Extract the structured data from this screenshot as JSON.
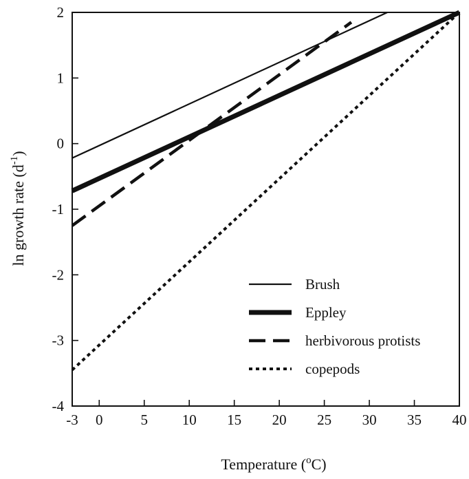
{
  "chart_data": {
    "type": "line",
    "title": "",
    "xlabel": "Temperature (",
    "xlabel_sup": "o",
    "xlabel_tail": "C)",
    "ylabel": "ln growth rate (d",
    "ylabel_sup": "-1",
    "ylabel_tail": ")",
    "xlim": [
      -3,
      40
    ],
    "ylim": [
      -4,
      2
    ],
    "xticks": [
      -3,
      0,
      5,
      10,
      15,
      20,
      25,
      30,
      35,
      40
    ],
    "xtick_labels": [
      "-3",
      "0",
      "5",
      "10",
      "15",
      "20",
      "25",
      "30",
      "35",
      "40"
    ],
    "yticks": [
      -4,
      -3,
      -2,
      -1,
      0,
      1,
      2
    ],
    "ytick_labels": [
      "-4",
      "-3",
      "-2",
      "-1",
      "0",
      "1",
      "2"
    ],
    "grid": false,
    "legend_position": "bottom-right",
    "series": [
      {
        "name": "Brush",
        "style": "thin-solid",
        "x": [
          -3,
          32
        ],
        "y": [
          -0.22,
          2.0
        ]
      },
      {
        "name": "Eppley",
        "style": "thick-solid",
        "x": [
          -3,
          40
        ],
        "y": [
          -0.72,
          2.0
        ]
      },
      {
        "name": "herbivorous protists",
        "style": "dashed",
        "x": [
          -3,
          28
        ],
        "y": [
          -1.25,
          1.85
        ]
      },
      {
        "name": "copepods",
        "style": "dotted",
        "x": [
          -3,
          40
        ],
        "y": [
          -3.45,
          2.0
        ]
      }
    ],
    "colors": {
      "ink": "#111111",
      "background": "#ffffff"
    }
  }
}
